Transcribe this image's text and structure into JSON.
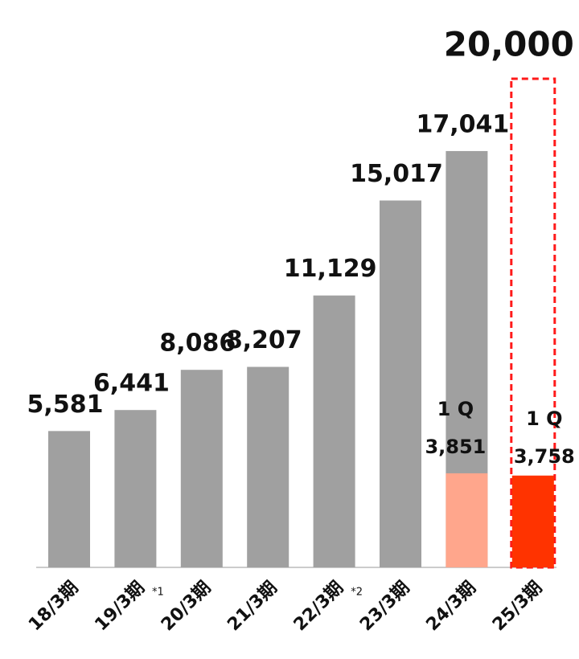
{
  "chart_data": {
    "type": "bar",
    "categories": [
      "18/3期",
      "19/3期",
      "20/3期",
      "21/3期",
      "22/3期",
      "23/3期",
      "24/3期",
      "25/3期"
    ],
    "ylim": [
      0,
      20000
    ],
    "series": [
      {
        "color": "#a0a0a0",
        "values": [
          5581,
          6441,
          8086,
          8207,
          11129,
          15017,
          17041,
          null
        ],
        "value_labels": [
          "5,581",
          "6,441",
          "8,086",
          "8,207",
          "11,129",
          "15,017",
          "17,041",
          null
        ]
      },
      {
        "color": "#ff1a1a",
        "style": "dashed",
        "values": [
          null,
          null,
          null,
          null,
          null,
          null,
          null,
          20000
        ],
        "value_labels": [
          null,
          null,
          null,
          null,
          null,
          null,
          null,
          "20,000"
        ]
      },
      {
        "color": [
          "#ffa68c",
          "#ff3300"
        ],
        "values": [
          null,
          null,
          null,
          null,
          null,
          null,
          3851,
          3758
        ],
        "value_labels": [
          null,
          null,
          null,
          null,
          null,
          null,
          "3,851",
          "3,758"
        ]
      }
    ],
    "q1_label": "1 Q",
    "footnotes": [
      {
        "index": 1,
        "text": "*1"
      },
      {
        "index": 4,
        "text": "*2"
      }
    ]
  }
}
